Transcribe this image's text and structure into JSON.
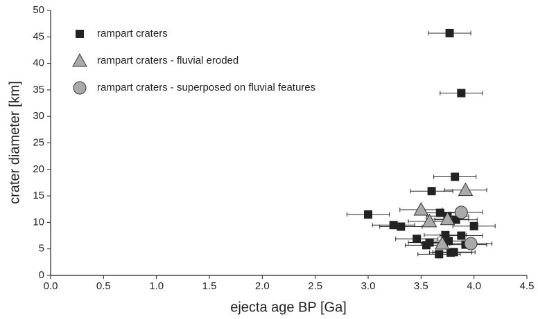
{
  "chart_data": {
    "type": "scatter",
    "xlabel": "ejecta age BP [Ga]",
    "ylabel": "crater diameter [km]",
    "xlim": [
      0,
      4.5
    ],
    "ylim": [
      0,
      50
    ],
    "xticks": [
      {
        "value": 0,
        "label": "0.0"
      },
      0.5,
      {
        "value": 1,
        "label": "1.0"
      },
      1.5,
      {
        "value": 2,
        "label": "2.0"
      },
      2.5,
      {
        "value": 3,
        "label": "3.0"
      },
      3.5,
      {
        "value": 4,
        "label": "4.0"
      },
      4.5
    ],
    "yticks": [
      0,
      5,
      10,
      15,
      20,
      25,
      30,
      35,
      40,
      45,
      50
    ],
    "legend": "upper left",
    "series": [
      {
        "name": "rampart craters",
        "marker": "square",
        "color": "#222222",
        "x": [
          3.77,
          3.88,
          3.82,
          3.6,
          3.0,
          3.24,
          3.31,
          3.68,
          3.75,
          3.83,
          4.0,
          3.73,
          3.88,
          3.46,
          3.55,
          3.76,
          3.67,
          3.78,
          3.81,
          3.92,
          3.58
        ],
        "values": [
          45.7,
          34.4,
          18.6,
          15.9,
          11.5,
          9.5,
          9.2,
          11.8,
          11.2,
          10.5,
          9.3,
          7.6,
          7.5,
          6.9,
          5.7,
          6.5,
          4.0,
          4.3,
          4.4,
          5.8,
          6.2
        ],
        "xerr": [
          0.2,
          0.2,
          0.2,
          0.2,
          0.2,
          0.2,
          0.2,
          0.2,
          0.2,
          0.2,
          0.2,
          0.2,
          0.2,
          0.2,
          0.2,
          0.2,
          0.2,
          0.2,
          0.2,
          0.2,
          0.2
        ]
      },
      {
        "name": "rampart craters - fluvial eroded",
        "marker": "triangle",
        "color": "#aaaaaa",
        "x": [
          3.5,
          3.58,
          3.75,
          3.92,
          3.7
        ],
        "values": [
          12.4,
          10.2,
          10.6,
          16.1,
          6.0
        ],
        "xerr": [
          0.2,
          0.2,
          0.2,
          0.2,
          0.2
        ]
      },
      {
        "name": "rampart craters - superposed on fluvial features",
        "marker": "circle",
        "color": "#aaaaaa",
        "x": [
          3.88,
          3.97
        ],
        "values": [
          11.9,
          6.0
        ],
        "xerr": [
          0.2,
          0.2
        ]
      }
    ]
  }
}
